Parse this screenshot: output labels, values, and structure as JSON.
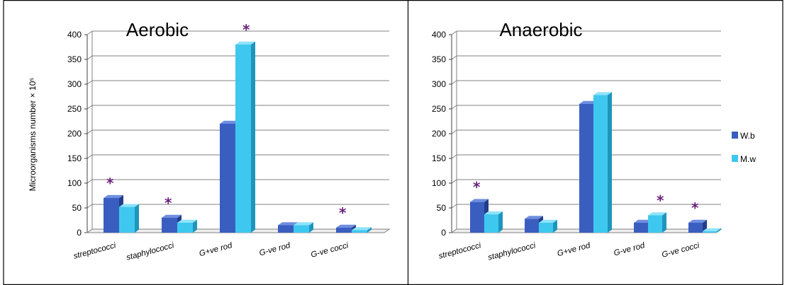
{
  "colors": {
    "wb_front": "#3a5ec0",
    "wb_side": "#243d8a",
    "wb_top": "#6f8ee0",
    "mw_front": "#3fc8ef",
    "mw_side": "#1e95bd",
    "mw_top": "#8fe3fa",
    "star": "#6b1f7d",
    "grid": "#808080"
  },
  "legend": {
    "wb": "W.b",
    "mw": "M.w"
  },
  "ylabel": "Microorganisms number × 10⁵",
  "chart_data": [
    {
      "type": "bar",
      "title": "Aerobic",
      "categories": [
        "streptococci",
        "staphylococci",
        "G+ve rod",
        "G-ve rod",
        "G-ve cocci"
      ],
      "series": [
        {
          "name": "W.b",
          "values": [
            70,
            30,
            220,
            15,
            10
          ]
        },
        {
          "name": "M.w",
          "values": [
            52,
            20,
            380,
            15,
            5
          ]
        }
      ],
      "significant": [
        true,
        true,
        true,
        false,
        true
      ],
      "ylim": [
        0,
        400
      ],
      "yticks": [
        0,
        50,
        100,
        150,
        200,
        250,
        300,
        350,
        400
      ]
    },
    {
      "type": "bar",
      "title": "Anaerobic",
      "categories": [
        "streptococci",
        "staphylococci",
        "G+ve rod",
        "G-ve rod",
        "G-ve cocci"
      ],
      "series": [
        {
          "name": "W.b",
          "values": [
            62,
            28,
            260,
            20,
            20
          ]
        },
        {
          "name": "M.w",
          "values": [
            37,
            20,
            278,
            35,
            3
          ]
        }
      ],
      "significant": [
        true,
        false,
        false,
        true,
        true
      ],
      "ylim": [
        0,
        400
      ],
      "yticks": [
        0,
        50,
        100,
        150,
        200,
        250,
        300,
        350,
        400
      ]
    }
  ]
}
